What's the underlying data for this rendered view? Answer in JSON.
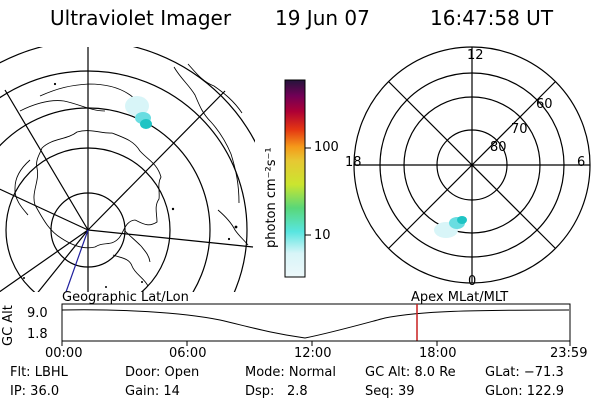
{
  "header": {
    "instrument": "Ultraviolet Imager",
    "date": "19 Jun 07",
    "time": "16:47:58 UT"
  },
  "left_map": {
    "label": "Geographic Lat/Lon",
    "type": "geographic polar map"
  },
  "colorbar": {
    "unit_label": "photon cm⁻²s⁻¹",
    "ticks": [
      "100",
      "10"
    ],
    "scale": "log",
    "colors": [
      "#e8f7f8",
      "#58e5e0",
      "#59d779",
      "#cbe52f",
      "#e7c833",
      "#f59b1a",
      "#e43512",
      "#ae0035",
      "#710056",
      "#24143b"
    ]
  },
  "right_map": {
    "label": "Apex MLat/MLT",
    "mlt_labels": [
      "12",
      "18",
      "6",
      "0"
    ],
    "lat_labels": [
      "60",
      "70",
      "80"
    ]
  },
  "timeline": {
    "y_axis_label": "GC Alt",
    "y_ticks": [
      "9.0",
      "1.8"
    ],
    "x_ticks": [
      "00:00",
      "06:00",
      "12:00",
      "18:00",
      "23:59"
    ],
    "marker_time": "16:47:58",
    "line_color": "#000000",
    "marker_color": "#c81f1f"
  },
  "footer": {
    "row1": {
      "filter": "Flt: LBHL",
      "door": "Door: Open",
      "mode": "Mode: Normal",
      "gc_alt": "GC Alt: 8.0 Re",
      "glat": "GLat: −71.3"
    },
    "row2": {
      "ip": "IP: 36.0",
      "gain": "Gain: 14",
      "dsp_label": "Dsp:",
      "dsp_value": "2.8",
      "seq": "Seq: 39",
      "glon": "GLon: 122.9"
    }
  },
  "auroral_colors": {
    "faint": "#d8f5f8",
    "mid": "#69dde1",
    "bright": "#1fc4c4"
  }
}
